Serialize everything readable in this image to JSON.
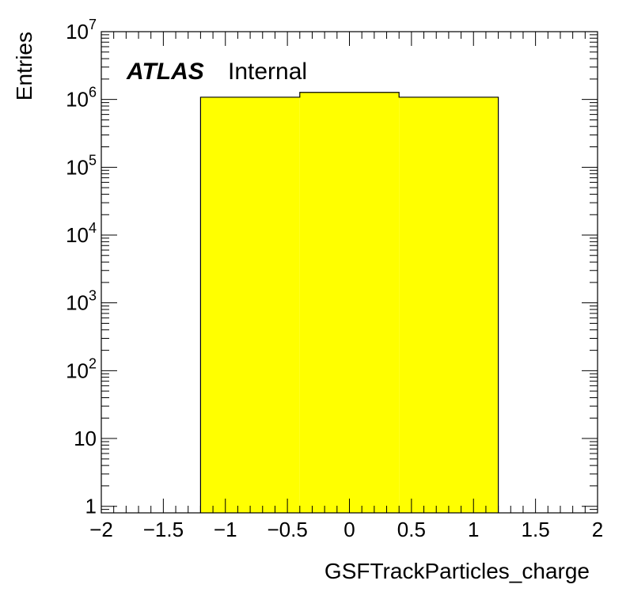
{
  "chart_data": {
    "type": "bar",
    "style": "histogram",
    "bin_edges": [
      -1.2,
      -0.4,
      0.4,
      1.2
    ],
    "values": [
      1080000,
      1270000,
      1080000
    ],
    "fill_color": "#ffff00",
    "line_color": "#000000",
    "xlabel": "GSFTrackParticles_charge",
    "ylabel": "Entries",
    "xlim": [
      -2,
      2
    ],
    "ylim": [
      0.8,
      10000000
    ],
    "y_scale": "log",
    "x_tick_labels": [
      {
        "value": -2,
        "label": "−2"
      },
      {
        "value": -1.5,
        "label": "−1.5"
      },
      {
        "value": -1,
        "label": "−1"
      },
      {
        "value": -0.5,
        "label": "−0.5"
      },
      {
        "value": 0,
        "label": "0"
      },
      {
        "value": 0.5,
        "label": "0.5"
      },
      {
        "value": 1,
        "label": "1"
      },
      {
        "value": 1.5,
        "label": "1.5"
      },
      {
        "value": 2,
        "label": "2"
      }
    ],
    "y_tick_labels": [
      {
        "value": 1,
        "base": "1",
        "exp": ""
      },
      {
        "value": 10,
        "base": "10",
        "exp": ""
      },
      {
        "value": 100,
        "base": "10",
        "exp": "2"
      },
      {
        "value": 1000,
        "base": "10",
        "exp": "3"
      },
      {
        "value": 10000,
        "base": "10",
        "exp": "4"
      },
      {
        "value": 100000,
        "base": "10",
        "exp": "5"
      },
      {
        "value": 1000000,
        "base": "10",
        "exp": "6"
      },
      {
        "value": 10000000,
        "base": "10",
        "exp": "7"
      }
    ],
    "grid": false,
    "annotation": {
      "experiment": "ATLAS",
      "status": "Internal"
    }
  }
}
